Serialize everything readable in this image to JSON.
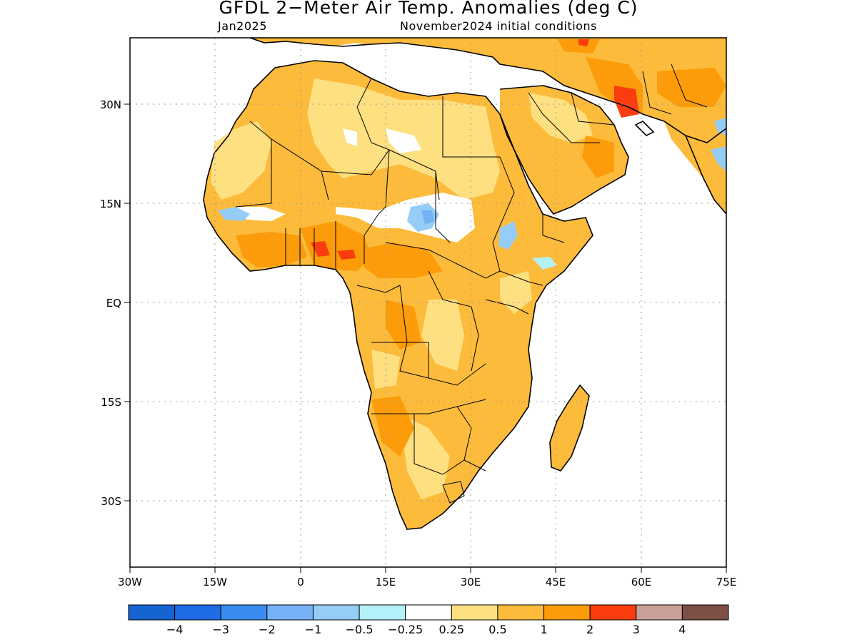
{
  "title": "GFDL 2−Meter Air Temp. Anomalies (deg C)",
  "subtitle_left": "Jan2025",
  "subtitle_right": "November2024 initial conditions",
  "lon_labels": [
    "30W",
    "15W",
    "0",
    "15E",
    "30E",
    "45E",
    "60E",
    "75E"
  ],
  "lat_labels": [
    "30N",
    "15N",
    "EQ",
    "15S",
    "30S"
  ],
  "colorbar": {
    "colors": [
      "#1664d2",
      "#1f6be6",
      "#3a8cf0",
      "#75b2f5",
      "#96cdf7",
      "#b3f0f8",
      "#ffffff",
      "#fee081",
      "#fdbb3b",
      "#fd9c0a",
      "#fa3c0e",
      "#c8a097",
      "#7c5045"
    ],
    "labels": [
      "−4",
      "−3",
      "−2",
      "−1",
      "−0.5",
      "−0.25",
      "0.25",
      "0.5",
      "1",
      "2",
      "3",
      "4"
    ]
  },
  "map_data": {
    "lon_range": [
      -30,
      75
    ],
    "lat_range": [
      -40,
      40
    ],
    "dominant_anomaly_category": "0.5 to 1",
    "warm_spots_category": "2 to 3",
    "cool_spots_category": "-1 to -0.5"
  }
}
